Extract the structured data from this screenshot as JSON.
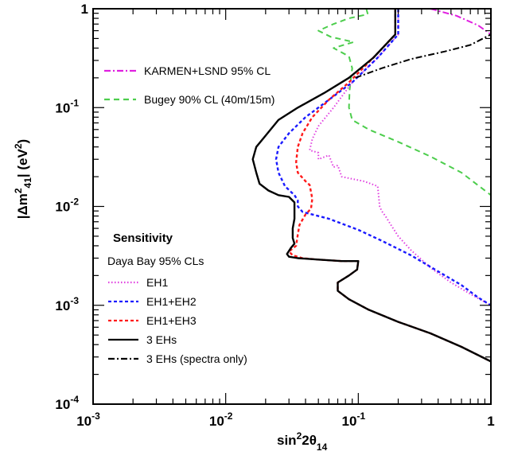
{
  "chart_data": {
    "type": "line",
    "xlabel": "sin²2θ₁₄",
    "ylabel": "|Δm²₄₁| (eV²)",
    "xscale": "log",
    "yscale": "log",
    "xlim": [
      0.001,
      1
    ],
    "ylim": [
      0.0001,
      1
    ],
    "x_ticks": [
      {
        "value": 0.001,
        "base": "10",
        "exp": "-3"
      },
      {
        "value": 0.01,
        "base": "10",
        "exp": "-2"
      },
      {
        "value": 0.1,
        "base": "10",
        "exp": "-1"
      },
      {
        "value": 1,
        "base": "1",
        "exp": ""
      }
    ],
    "y_ticks": [
      {
        "value": 0.0001,
        "base": "10",
        "exp": "-4"
      },
      {
        "value": 0.001,
        "base": "10",
        "exp": "-3"
      },
      {
        "value": 0.01,
        "base": "10",
        "exp": "-2"
      },
      {
        "value": 0.1,
        "base": "10",
        "exp": "-1"
      },
      {
        "value": 1,
        "base": "1",
        "exp": ""
      }
    ],
    "legend_top": [
      {
        "label": "KARMEN+LSND 95% CL",
        "color": "#e020e0",
        "dash": "dashdot"
      },
      {
        "label": "Bugey 90% CL (40m/15m)",
        "color": "#4ccd4c",
        "dash": "dashed"
      }
    ],
    "legend_bottom_title": "Sensitivity",
    "legend_bottom_subtitle": "Daya Bay 95% CLs",
    "legend_bottom": [
      {
        "label": "EH1",
        "color": "#e040e0",
        "dash": "dotted"
      },
      {
        "label": "EH1+EH2",
        "color": "#1a1aff",
        "dash": "dashed-short"
      },
      {
        "label": "EH1+EH3",
        "color": "#ff1a1a",
        "dash": "dashed-short"
      },
      {
        "label": "3 EHs",
        "color": "#000000",
        "dash": "solid"
      },
      {
        "label": "3 EHs (spectra only)",
        "color": "#000000",
        "dash": "dashdot"
      }
    ],
    "series": [
      {
        "name": "KARMEN+LSND 95% CL",
        "color": "#e020e0",
        "style": "dashdot",
        "width": 2,
        "points": [
          [
            0.35,
            1.0
          ],
          [
            0.55,
            0.85
          ],
          [
            0.8,
            0.68
          ],
          [
            1.0,
            0.55
          ]
        ]
      },
      {
        "name": "Bugey 90% CL (40m/15m)",
        "color": "#4ccd4c",
        "style": "dashed",
        "width": 2,
        "points": [
          [
            0.115,
            1.0
          ],
          [
            0.118,
            0.88
          ],
          [
            0.085,
            0.8
          ],
          [
            0.065,
            0.7
          ],
          [
            0.05,
            0.6
          ],
          [
            0.062,
            0.52
          ],
          [
            0.092,
            0.46
          ],
          [
            0.065,
            0.4
          ],
          [
            0.085,
            0.33
          ],
          [
            0.09,
            0.25
          ],
          [
            0.088,
            0.2
          ],
          [
            0.086,
            0.15
          ],
          [
            0.085,
            0.1
          ],
          [
            0.09,
            0.075
          ],
          [
            0.12,
            0.06
          ],
          [
            0.2,
            0.045
          ],
          [
            0.35,
            0.032
          ],
          [
            0.6,
            0.022
          ],
          [
            1.0,
            0.013
          ]
        ]
      },
      {
        "name": "EH1",
        "color": "#e040e0",
        "style": "dotted",
        "width": 2,
        "points": [
          [
            0.2,
            1.0
          ],
          [
            0.2,
            0.55
          ],
          [
            0.14,
            0.32
          ],
          [
            0.09,
            0.18
          ],
          [
            0.065,
            0.1
          ],
          [
            0.05,
            0.065
          ],
          [
            0.045,
            0.048
          ],
          [
            0.043,
            0.037
          ],
          [
            0.05,
            0.035
          ],
          [
            0.05,
            0.03
          ],
          [
            0.06,
            0.033
          ],
          [
            0.065,
            0.025
          ],
          [
            0.07,
            0.026
          ],
          [
            0.075,
            0.02
          ],
          [
            0.09,
            0.019
          ],
          [
            0.11,
            0.018
          ],
          [
            0.14,
            0.016
          ],
          [
            0.145,
            0.01
          ],
          [
            0.15,
            0.009
          ],
          [
            0.16,
            0.008
          ],
          [
            0.175,
            0.0066
          ],
          [
            0.2,
            0.005
          ],
          [
            0.25,
            0.0036
          ],
          [
            0.35,
            0.0024
          ],
          [
            0.5,
            0.0017
          ],
          [
            0.7,
            0.0013
          ],
          [
            1.0,
            0.001
          ]
        ]
      },
      {
        "name": "EH1+EH2",
        "color": "#1a1aff",
        "style": "dashed-short",
        "width": 2.4,
        "points": [
          [
            0.2,
            1.0
          ],
          [
            0.2,
            0.55
          ],
          [
            0.14,
            0.32
          ],
          [
            0.09,
            0.18
          ],
          [
            0.06,
            0.12
          ],
          [
            0.04,
            0.08
          ],
          [
            0.03,
            0.055
          ],
          [
            0.025,
            0.04
          ],
          [
            0.024,
            0.03
          ],
          [
            0.025,
            0.022
          ],
          [
            0.028,
            0.016
          ],
          [
            0.033,
            0.013
          ],
          [
            0.035,
            0.0115
          ],
          [
            0.035,
            0.01
          ],
          [
            0.038,
            0.0088
          ],
          [
            0.06,
            0.0075
          ],
          [
            0.1,
            0.0058
          ],
          [
            0.15,
            0.0045
          ],
          [
            0.25,
            0.0032
          ],
          [
            0.4,
            0.0022
          ],
          [
            0.6,
            0.0016
          ],
          [
            0.8,
            0.0012
          ],
          [
            1.0,
            0.001
          ]
        ]
      },
      {
        "name": "EH1+EH3",
        "color": "#ff1a1a",
        "style": "dashed-short",
        "width": 2.4,
        "points": [
          [
            0.19,
            1.0
          ],
          [
            0.19,
            0.55
          ],
          [
            0.13,
            0.32
          ],
          [
            0.085,
            0.18
          ],
          [
            0.06,
            0.12
          ],
          [
            0.045,
            0.08
          ],
          [
            0.038,
            0.055
          ],
          [
            0.035,
            0.04
          ],
          [
            0.034,
            0.028
          ],
          [
            0.035,
            0.022
          ],
          [
            0.04,
            0.018
          ],
          [
            0.043,
            0.0165
          ],
          [
            0.045,
            0.012
          ],
          [
            0.044,
            0.0095
          ],
          [
            0.04,
            0.0083
          ],
          [
            0.036,
            0.0065
          ],
          [
            0.035,
            0.0052
          ],
          [
            0.034,
            0.004
          ],
          [
            0.03,
            0.0035
          ],
          [
            0.032,
            0.0032
          ],
          [
            0.038,
            0.003
          ],
          [
            0.05,
            0.0029
          ],
          [
            0.075,
            0.0028
          ],
          [
            0.1,
            0.0028
          ],
          [
            0.098,
            0.0023
          ],
          [
            0.085,
            0.002
          ],
          [
            0.07,
            0.0017
          ],
          [
            0.07,
            0.0014
          ],
          [
            0.085,
            0.00115
          ],
          [
            0.12,
            0.0009
          ],
          [
            0.2,
            0.00068
          ],
          [
            0.35,
            0.00052
          ],
          [
            0.6,
            0.00038
          ],
          [
            1.0,
            0.00027
          ]
        ]
      },
      {
        "name": "3 EHs",
        "color": "#000000",
        "style": "solid",
        "width": 2.4,
        "points": [
          [
            0.19,
            1.0
          ],
          [
            0.19,
            0.55
          ],
          [
            0.13,
            0.32
          ],
          [
            0.085,
            0.2
          ],
          [
            0.055,
            0.14
          ],
          [
            0.035,
            0.1
          ],
          [
            0.025,
            0.075
          ],
          [
            0.02,
            0.052
          ],
          [
            0.017,
            0.04
          ],
          [
            0.016,
            0.03
          ],
          [
            0.017,
            0.022
          ],
          [
            0.018,
            0.017
          ],
          [
            0.021,
            0.0145
          ],
          [
            0.025,
            0.013
          ],
          [
            0.03,
            0.0125
          ],
          [
            0.033,
            0.011
          ],
          [
            0.033,
            0.009
          ],
          [
            0.033,
            0.0075
          ],
          [
            0.032,
            0.006
          ],
          [
            0.032,
            0.0048
          ],
          [
            0.033,
            0.0042
          ],
          [
            0.031,
            0.0038
          ],
          [
            0.029,
            0.0033
          ],
          [
            0.03,
            0.0031
          ],
          [
            0.035,
            0.003
          ],
          [
            0.05,
            0.0029
          ],
          [
            0.075,
            0.0028
          ],
          [
            0.1,
            0.0028
          ],
          [
            0.098,
            0.0023
          ],
          [
            0.085,
            0.002
          ],
          [
            0.07,
            0.0017
          ],
          [
            0.07,
            0.0014
          ],
          [
            0.085,
            0.00115
          ],
          [
            0.12,
            0.0009
          ],
          [
            0.2,
            0.00068
          ],
          [
            0.35,
            0.00052
          ],
          [
            0.6,
            0.00038
          ],
          [
            1.0,
            0.00027
          ]
        ]
      },
      {
        "name": "3 EHs (spectra only)",
        "color": "#000000",
        "style": "dashdot",
        "width": 2,
        "points": [
          [
            0.095,
            0.2
          ],
          [
            0.15,
            0.25
          ],
          [
            0.25,
            0.31
          ],
          [
            0.45,
            0.37
          ],
          [
            0.7,
            0.43
          ],
          [
            1.0,
            0.55
          ]
        ]
      }
    ]
  }
}
